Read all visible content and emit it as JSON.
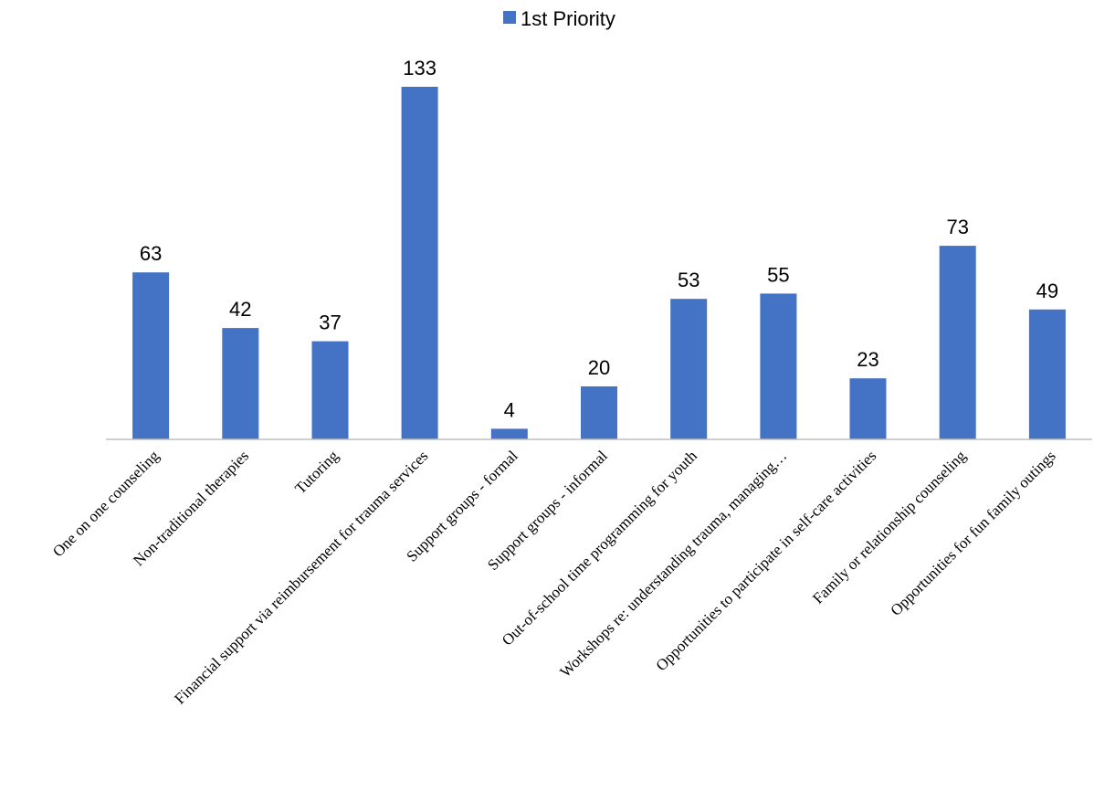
{
  "chart_data": {
    "type": "bar",
    "categories": [
      "One on one counseling",
      "Non-traditional therapies",
      "Tutoring",
      "Financial support via reimbursement for trauma services",
      "Support groups - formal",
      "Support groups - informal",
      "Out-of-school time programming for youth",
      "Workshops re: understanding trauma, managing…",
      "Opportunities to participate in self-care activities",
      "Family or relationship counseling",
      "Opportunities for fun family outings"
    ],
    "series": [
      {
        "name": "1st Priority",
        "values": [
          63,
          42,
          37,
          133,
          4,
          20,
          53,
          55,
          23,
          73,
          49
        ],
        "color": "#4472C4"
      }
    ],
    "legend": "top-center",
    "grid": false,
    "ylim": [
      0,
      133
    ],
    "data_labels": true
  }
}
